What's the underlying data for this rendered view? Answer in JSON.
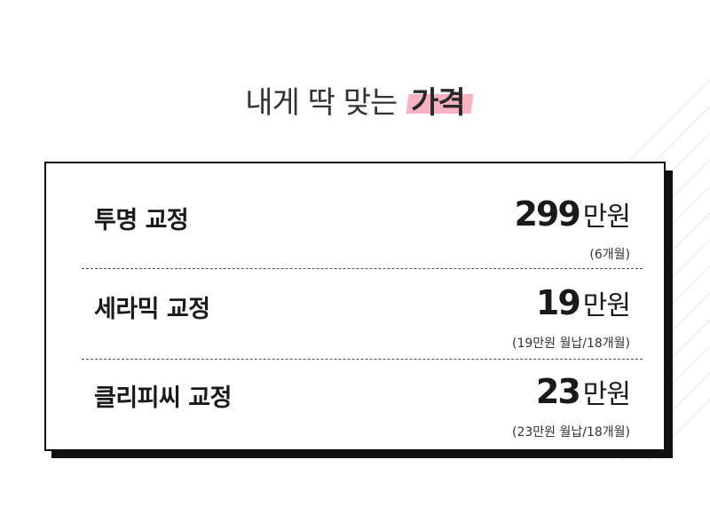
{
  "headline": {
    "plain": "내게 딱 맞는",
    "accent": "가격"
  },
  "prices": [
    {
      "name": "투명 교정",
      "amount": "299",
      "unit": "만원",
      "note": "(6개월)"
    },
    {
      "name": "세라믹 교정",
      "amount": "19",
      "unit": "만원",
      "note": "(19만원 월납/18개월)"
    },
    {
      "name": "클리피씨 교정",
      "amount": "23",
      "unit": "만원",
      "note": "(23만원 월납/18개월)"
    }
  ],
  "colors": {
    "highlight": "#f7b3c4",
    "border": "#111111",
    "text": "#222222"
  }
}
